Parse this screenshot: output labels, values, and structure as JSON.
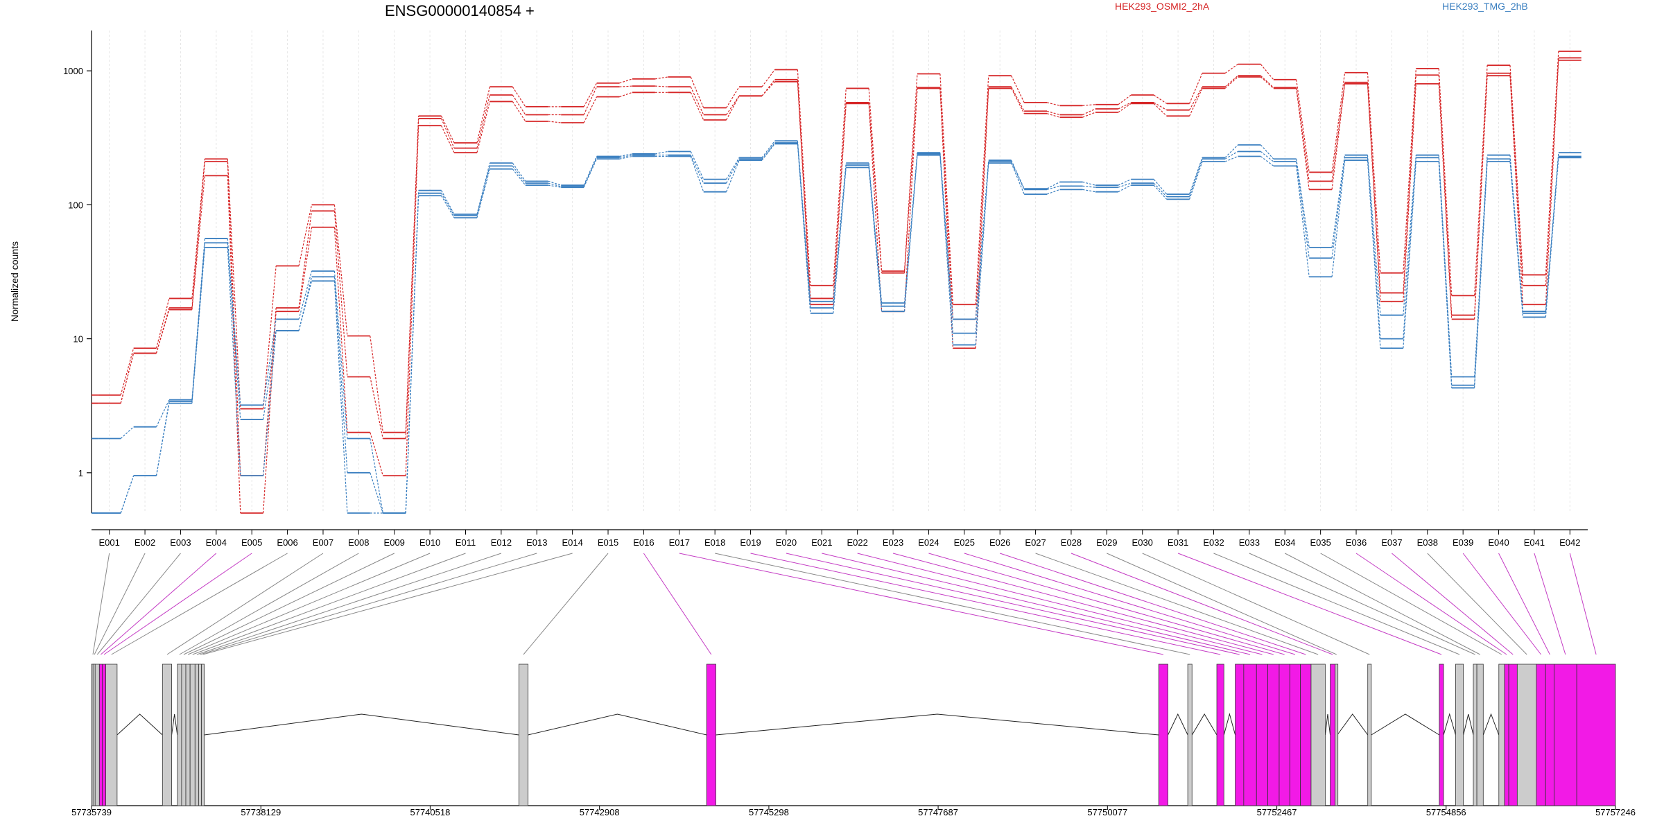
{
  "chart_data": {
    "type": "line",
    "title": "ENSG00000140854 +",
    "ylabel": "Normalized counts",
    "yscale": "log",
    "ylim": [
      0.5,
      2000
    ],
    "yticks": [
      1,
      10,
      100,
      1000
    ],
    "ytick_labels": [
      "1",
      "10",
      "100",
      "1000"
    ],
    "grid": "vertical dotted lines at each exon bin",
    "legend": {
      "placement": "top-right",
      "entries": [
        "HEK293_OSMI2_2hA",
        "HEK293_TMG_2hB"
      ]
    },
    "colors": {
      "HEK293_OSMI2_2hA": "#d62728",
      "HEK293_TMG_2hB": "#3a7fc0",
      "highlight_exon": "#f21ae6",
      "exon": "#cccccc"
    },
    "categories": [
      "E001",
      "E002",
      "E003",
      "E004",
      "E005",
      "E006",
      "E007",
      "E008",
      "E009",
      "E010",
      "E011",
      "E012",
      "E013",
      "E014",
      "E015",
      "E016",
      "E017",
      "E018",
      "E019",
      "E020",
      "E021",
      "E022",
      "E023",
      "E024",
      "E025",
      "E026",
      "E027",
      "E028",
      "E029",
      "E030",
      "E031",
      "E032",
      "E033",
      "E034",
      "E035",
      "E036",
      "E037",
      "E038",
      "E039",
      "E040",
      "E041",
      "E042"
    ],
    "series": [
      {
        "group": "HEK293_OSMI2_2hA",
        "values": [
          3.8,
          8.5,
          20,
          220,
          3.0,
          35,
          100,
          10.5,
          2.0,
          460,
          290,
          760,
          540,
          540,
          810,
          870,
          900,
          530,
          760,
          1020,
          25,
          740,
          32,
          950,
          18,
          920,
          580,
          550,
          560,
          660,
          570,
          960,
          1120,
          860,
          175,
          970,
          31,
          1040,
          21,
          1100,
          30,
          1400
        ]
      },
      {
        "group": "HEK293_OSMI2_2hA",
        "values": [
          3.3,
          7.8,
          17,
          210,
          0.95,
          17,
          90,
          5.2,
          1.8,
          440,
          265,
          660,
          470,
          470,
          760,
          770,
          760,
          470,
          650,
          860,
          20,
          580,
          31,
          750,
          14,
          760,
          500,
          470,
          520,
          580,
          510,
          760,
          920,
          750,
          150,
          820,
          22,
          930,
          15,
          960,
          25,
          1250
        ]
      },
      {
        "group": "HEK293_OSMI2_2hA",
        "values": [
          3.3,
          7.8,
          16.5,
          165,
          0.5,
          16,
          68,
          2.0,
          0.95,
          390,
          245,
          590,
          420,
          410,
          640,
          690,
          690,
          430,
          650,
          830,
          18,
          570,
          16,
          740,
          8.5,
          740,
          480,
          450,
          490,
          570,
          460,
          740,
          900,
          740,
          130,
          800,
          19,
          800,
          14,
          920,
          18,
          1200
        ]
      },
      {
        "group": "HEK293_TMG_2hB",
        "values": [
          1.8,
          2.2,
          3.5,
          56,
          3.2,
          14,
          32,
          1.8,
          0.5,
          128,
          85,
          205,
          150,
          140,
          230,
          240,
          250,
          155,
          225,
          300,
          19,
          205,
          18.5,
          245,
          14,
          215,
          132,
          148,
          140,
          155,
          120,
          225,
          280,
          220,
          48,
          235,
          15,
          235,
          5.2,
          235,
          16,
          245
        ]
      },
      {
        "group": "HEK293_TMG_2hB",
        "values": [
          0.5,
          0.95,
          3.4,
          52,
          2.5,
          11.5,
          29,
          1.0,
          0.5,
          122,
          83,
          195,
          145,
          137,
          225,
          235,
          235,
          145,
          220,
          290,
          17,
          198,
          17.5,
          240,
          11,
          210,
          130,
          138,
          135,
          145,
          115,
          220,
          250,
          210,
          40,
          225,
          10,
          225,
          4.5,
          220,
          15.5,
          230
        ]
      },
      {
        "group": "HEK293_TMG_2hB",
        "values": [
          0.5,
          0.95,
          3.3,
          48,
          0.95,
          11.5,
          27,
          0.5,
          0.5,
          117,
          80,
          185,
          140,
          135,
          220,
          230,
          230,
          125,
          215,
          285,
          15.5,
          190,
          16,
          235,
          9,
          205,
          120,
          130,
          125,
          140,
          110,
          210,
          230,
          195,
          29,
          215,
          8.5,
          210,
          4.3,
          210,
          14.5,
          225
        ]
      }
    ],
    "genomic_axis": {
      "ticks": [
        57735739,
        57738129,
        57740518,
        57742908,
        57745298,
        57747687,
        57750077,
        57752467,
        57754856,
        57757246
      ],
      "tick_labels": [
        "57735739",
        "57738129",
        "57740518",
        "57742908",
        "57745298",
        "57747687",
        "57750077",
        "57752467",
        "57754856",
        "57757246"
      ],
      "range": [
        57735739,
        57757246
      ]
    },
    "exons": [
      {
        "id": "E001",
        "start": 57735739,
        "end": 57735760,
        "highlight": false
      },
      {
        "id": "E002",
        "start": 57735760,
        "end": 57735790,
        "highlight": false
      },
      {
        "id": "E003",
        "start": 57735790,
        "end": 57735850,
        "highlight": false
      },
      {
        "id": "E004",
        "start": 57735850,
        "end": 57735890,
        "highlight": true
      },
      {
        "id": "E005",
        "start": 57735890,
        "end": 57735940,
        "highlight": true
      },
      {
        "id": "E006",
        "start": 57735940,
        "end": 57736100,
        "highlight": false
      },
      {
        "id": "E007",
        "start": 57736740,
        "end": 57736870,
        "highlight": false
      },
      {
        "id": "E008",
        "start": 57736950,
        "end": 57737010,
        "highlight": false
      },
      {
        "id": "E009",
        "start": 57737010,
        "end": 57737070,
        "highlight": false
      },
      {
        "id": "E010",
        "start": 57737070,
        "end": 57737130,
        "highlight": false
      },
      {
        "id": "E011",
        "start": 57737130,
        "end": 57737200,
        "highlight": false
      },
      {
        "id": "E012",
        "start": 57737200,
        "end": 57737250,
        "highlight": false
      },
      {
        "id": "E013",
        "start": 57737250,
        "end": 57737290,
        "highlight": false
      },
      {
        "id": "E014",
        "start": 57737290,
        "end": 57737330,
        "highlight": false
      },
      {
        "id": "E015",
        "start": 57741770,
        "end": 57741900,
        "highlight": false
      },
      {
        "id": "E016",
        "start": 57744420,
        "end": 57744550,
        "highlight": true
      },
      {
        "id": "E017",
        "start": 57750800,
        "end": 57750930,
        "highlight": true
      },
      {
        "id": "E018",
        "start": 57751210,
        "end": 57751270,
        "highlight": false
      },
      {
        "id": "E019",
        "start": 57751620,
        "end": 57751720,
        "highlight": true
      },
      {
        "id": "E020",
        "start": 57751880,
        "end": 57752000,
        "highlight": true
      },
      {
        "id": "E021",
        "start": 57752000,
        "end": 57752180,
        "highlight": true
      },
      {
        "id": "E022",
        "start": 57752180,
        "end": 57752340,
        "highlight": true
      },
      {
        "id": "E023",
        "start": 57752340,
        "end": 57752500,
        "highlight": true
      },
      {
        "id": "E024",
        "start": 57752500,
        "end": 57752650,
        "highlight": true
      },
      {
        "id": "E025",
        "start": 57752650,
        "end": 57752800,
        "highlight": true
      },
      {
        "id": "E026",
        "start": 57752800,
        "end": 57752950,
        "highlight": true
      },
      {
        "id": "E027",
        "start": 57752950,
        "end": 57753150,
        "highlight": false
      },
      {
        "id": "E028",
        "start": 57753220,
        "end": 57753290,
        "highlight": true
      },
      {
        "id": "E029",
        "start": 57753290,
        "end": 57753320,
        "highlight": false
      },
      {
        "id": "E030",
        "start": 57753750,
        "end": 57753800,
        "highlight": false
      },
      {
        "id": "E031",
        "start": 57754760,
        "end": 57754820,
        "highlight": true
      },
      {
        "id": "E032",
        "start": 57754990,
        "end": 57755100,
        "highlight": false
      },
      {
        "id": "E033",
        "start": 57755240,
        "end": 57755290,
        "highlight": false
      },
      {
        "id": "E034",
        "start": 57755290,
        "end": 57755380,
        "highlight": false
      },
      {
        "id": "E035",
        "start": 57755600,
        "end": 57755680,
        "highlight": false
      },
      {
        "id": "E036",
        "start": 57755680,
        "end": 57755740,
        "highlight": true
      },
      {
        "id": "E037",
        "start": 57755740,
        "end": 57755860,
        "highlight": true
      },
      {
        "id": "E038",
        "start": 57755860,
        "end": 57756130,
        "highlight": false
      },
      {
        "id": "E039",
        "start": 57756130,
        "end": 57756260,
        "highlight": true
      },
      {
        "id": "E040",
        "start": 57756260,
        "end": 57756380,
        "highlight": true
      },
      {
        "id": "E041",
        "start": 57756380,
        "end": 57756700,
        "highlight": true
      },
      {
        "id": "E042",
        "start": 57756700,
        "end": 57757246,
        "highlight": true
      }
    ]
  }
}
